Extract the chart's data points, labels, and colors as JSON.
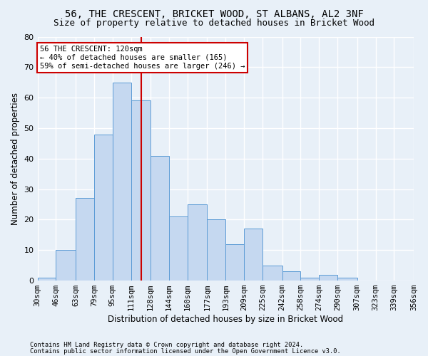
{
  "title1": "56, THE CRESCENT, BRICKET WOOD, ST ALBANS, AL2 3NF",
  "title2": "Size of property relative to detached houses in Bricket Wood",
  "xlabel": "Distribution of detached houses by size in Bricket Wood",
  "ylabel": "Number of detached properties",
  "bar_labels": [
    "30sqm",
    "46sqm",
    "63sqm",
    "79sqm",
    "95sqm",
    "111sqm",
    "128sqm",
    "144sqm",
    "160sqm",
    "177sqm",
    "193sqm",
    "209sqm",
    "225sqm",
    "242sqm",
    "258sqm",
    "274sqm",
    "290sqm",
    "307sqm",
    "323sqm",
    "339sqm",
    "356sqm"
  ],
  "hist_counts": [
    1,
    10,
    27,
    48,
    65,
    59,
    41,
    21,
    25,
    20,
    12,
    17,
    5,
    3,
    1,
    2,
    1,
    0,
    0,
    0
  ],
  "bin_edges": [
    30,
    46,
    63,
    79,
    95,
    111,
    128,
    144,
    160,
    177,
    193,
    209,
    225,
    242,
    258,
    274,
    290,
    307,
    323,
    339,
    356
  ],
  "bar_color": "#c5d8f0",
  "bar_edge_color": "#5b9bd5",
  "property_size": 120,
  "vline_color": "#cc0000",
  "annotation_text": "56 THE CRESCENT: 120sqm\n← 40% of detached houses are smaller (165)\n59% of semi-detached houses are larger (246) →",
  "annotation_box_color": "#ffffff",
  "annotation_box_edge": "#cc0000",
  "ylim": [
    0,
    80
  ],
  "yticks": [
    0,
    10,
    20,
    30,
    40,
    50,
    60,
    70,
    80
  ],
  "footer1": "Contains HM Land Registry data © Crown copyright and database right 2024.",
  "footer2": "Contains public sector information licensed under the Open Government Licence v3.0.",
  "background_color": "#e8f0f8",
  "plot_bg_color": "#e8f0f8",
  "grid_color": "#ffffff",
  "title1_fontsize": 10,
  "title2_fontsize": 9
}
